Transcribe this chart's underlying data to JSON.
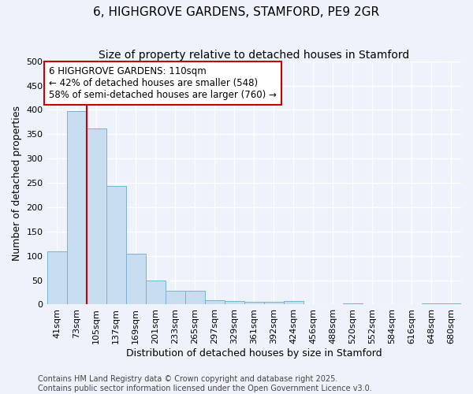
{
  "title_line1": "6, HIGHGROVE GARDENS, STAMFORD, PE9 2GR",
  "title_line2": "Size of property relative to detached houses in Stamford",
  "xlabel": "Distribution of detached houses by size in Stamford",
  "ylabel": "Number of detached properties",
  "categories": [
    "41sqm",
    "73sqm",
    "105sqm",
    "137sqm",
    "169sqm",
    "201sqm",
    "233sqm",
    "265sqm",
    "297sqm",
    "329sqm",
    "361sqm",
    "392sqm",
    "424sqm",
    "456sqm",
    "488sqm",
    "520sqm",
    "552sqm",
    "584sqm",
    "616sqm",
    "648sqm",
    "680sqm"
  ],
  "values": [
    110,
    397,
    362,
    243,
    104,
    50,
    28,
    28,
    9,
    7,
    6,
    6,
    7,
    1,
    1,
    2,
    0,
    1,
    0,
    2,
    3
  ],
  "bar_color": "#c8ddf0",
  "bar_edge_color": "#7ab0d8",
  "red_line_index": 2,
  "annotation_title": "6 HIGHGROVE GARDENS: 110sqm",
  "annotation_line1": "← 42% of detached houses are smaller (548)",
  "annotation_line2": "58% of semi-detached houses are larger (760) →",
  "annotation_box_facecolor": "#ffffff",
  "annotation_box_edgecolor": "#cc0000",
  "red_line_color": "#cc0000",
  "footer_line1": "Contains HM Land Registry data © Crown copyright and database right 2025.",
  "footer_line2": "Contains public sector information licensed under the Open Government Licence v3.0.",
  "ylim_max": 500,
  "background_color": "#eef2fa",
  "grid_color": "#ffffff",
  "title1_fontsize": 11,
  "title2_fontsize": 10,
  "ylabel_fontsize": 9,
  "xlabel_fontsize": 9,
  "tick_fontsize": 8,
  "annot_fontsize": 8.5,
  "footer_fontsize": 7
}
